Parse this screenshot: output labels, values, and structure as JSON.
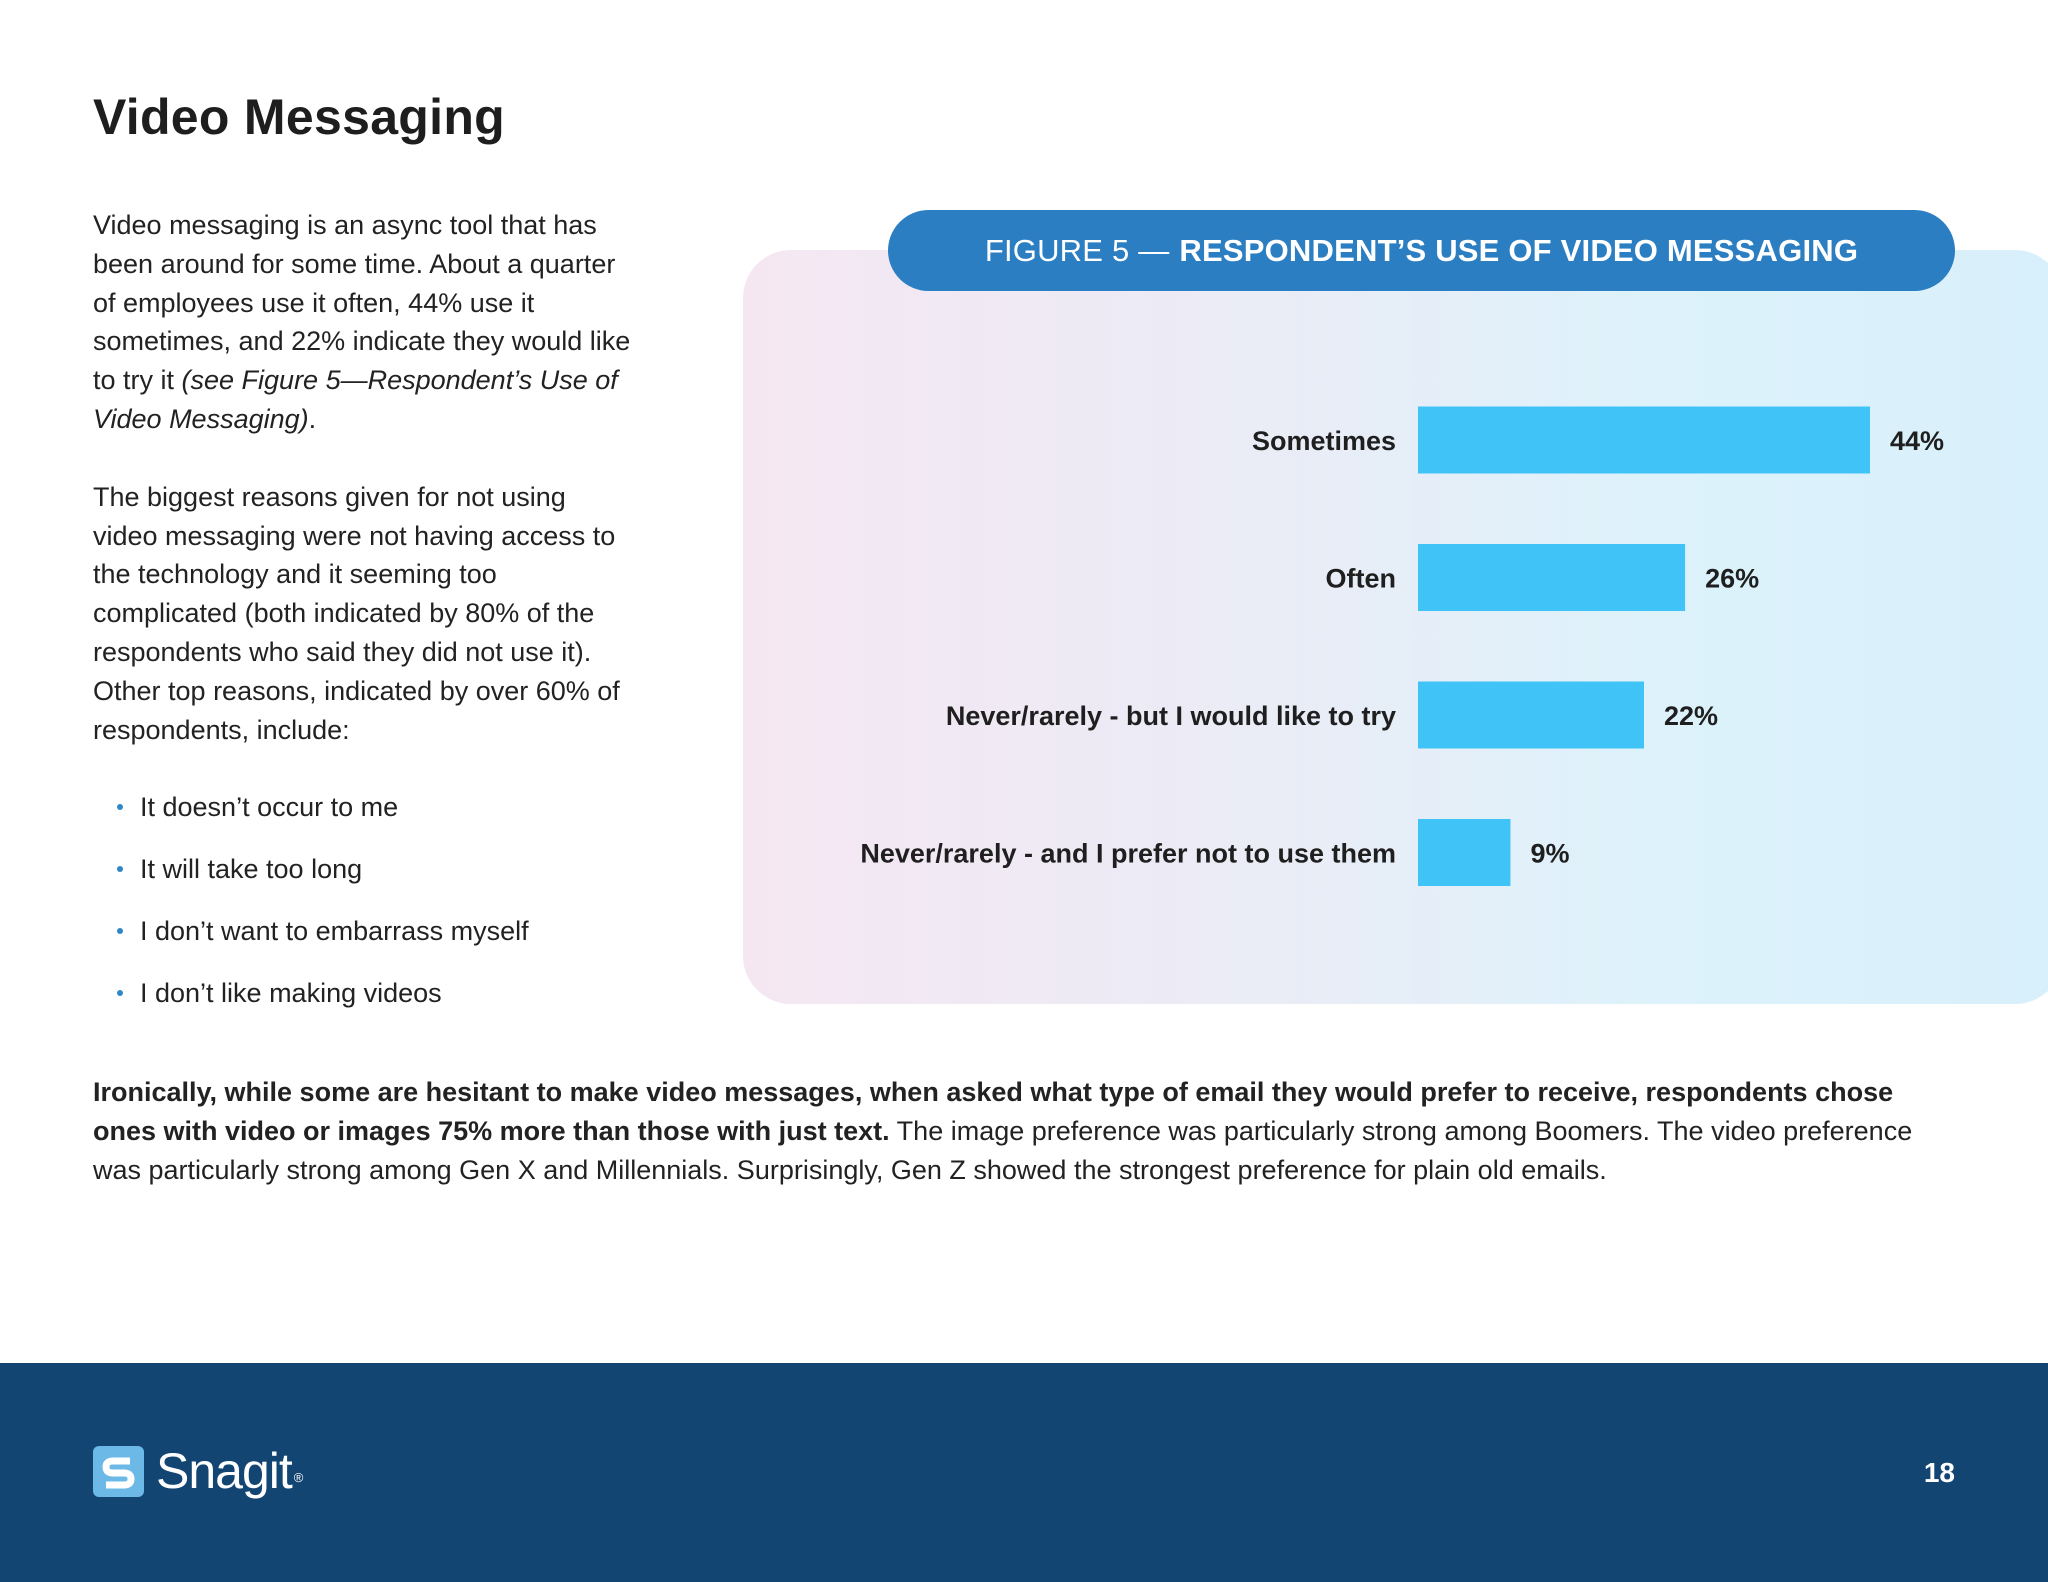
{
  "page": {
    "title": "Video Messaging",
    "number": "18"
  },
  "intro": {
    "p1_text": "Video messaging is an async tool that has been around for some time. About a quarter of employees use it often, 44% use it sometimes, and 22% indicate they would like to try it ",
    "p1_italic": "(see Figure 5—Respondent’s Use of Video Messaging)",
    "p1_end": ".",
    "p2": "The biggest reasons given for not using video messaging were not having access to the technology and it seeming too complicated (both indicated by 80% of the respondents who said they did not use it). Other top reasons, indicated by over 60% of respondents, include:",
    "reasons": [
      "It doesn’t occur to me",
      "It will take too long",
      "I don’t want to embarrass myself",
      "I don’t like making videos"
    ]
  },
  "figure": {
    "prefix": "FIGURE 5 —",
    "title": "RESPONDENT’S USE OF VIDEO MESSAGING"
  },
  "chart_data": {
    "type": "bar",
    "orientation": "horizontal",
    "categories": [
      "Sometimes",
      "Often",
      "Never/rarely - but I would like to try",
      "Never/rarely - and I prefer not to use them"
    ],
    "values": [
      44,
      26,
      22,
      9
    ],
    "value_labels": [
      "44%",
      "26%",
      "22%",
      "9%"
    ],
    "unit": "%",
    "bar_color": "#40c3f7",
    "xlim": [
      0,
      44
    ],
    "grid": false
  },
  "closing": {
    "bold": "Ironically, while some are hesitant to make video messages, when asked what type of email they would prefer to receive, respondents chose ones with video or images 75% more than those with just text.",
    "rest": " The image preference was particularly strong among Boomers. The video preference was particularly strong among Gen X and Millennials. Surprisingly, Gen Z showed the strongest preference for plain old emails."
  },
  "footer": {
    "logo_text": "Snagit",
    "logo_mark": "®",
    "background": "#134573"
  },
  "colors": {
    "banner": "#2b7ec1",
    "bullet": "#2f86c7",
    "bar": "#40c3f7"
  }
}
